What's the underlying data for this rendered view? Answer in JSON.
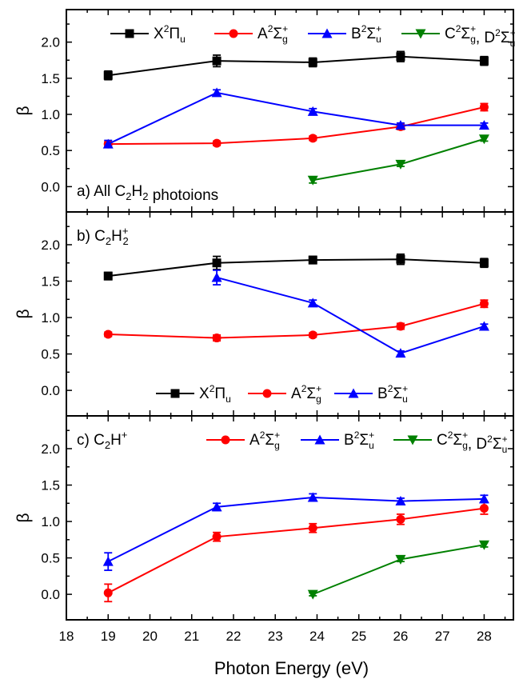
{
  "chart_data": [
    {
      "type": "line",
      "panel_label": {
        "prefix": "a) All C",
        "sub1": "2",
        "mid": "H",
        "sub2": "2",
        "suffix": " photoions"
      },
      "ylabel": "β",
      "ylim": [
        -0.35,
        2.45
      ],
      "yticks": [
        "0.0",
        "0.5",
        "1.0",
        "1.5",
        "2.0"
      ],
      "legend_position": "top",
      "series": [
        {
          "key": "X",
          "color": "#000000",
          "marker": "square",
          "x": [
            19,
            21.6,
            23.9,
            26,
            28
          ],
          "y": [
            1.54,
            1.74,
            1.72,
            1.8,
            1.74
          ],
          "err": [
            0.06,
            0.08,
            0.06,
            0.07,
            0.06
          ]
        },
        {
          "key": "A",
          "color": "#ff0000",
          "marker": "circle",
          "x": [
            19,
            21.6,
            23.9,
            26,
            28
          ],
          "y": [
            0.59,
            0.6,
            0.67,
            0.83,
            1.1
          ],
          "err": [
            0.03,
            0.03,
            0.03,
            0.04,
            0.05
          ]
        },
        {
          "key": "B",
          "color": "#0000ff",
          "marker": "triangle-up",
          "x": [
            19,
            21.6,
            23.9,
            26,
            28
          ],
          "y": [
            0.59,
            1.3,
            1.04,
            0.85,
            0.85
          ],
          "err": [
            0.05,
            0.04,
            0.04,
            0.03,
            0.03
          ]
        },
        {
          "key": "CD",
          "color": "#008000",
          "marker": "triangle-down",
          "x": [
            23.9,
            26,
            28
          ],
          "y": [
            0.09,
            0.31,
            0.66
          ],
          "err": [
            0.04,
            0.03,
            0.03
          ]
        }
      ]
    },
    {
      "type": "line",
      "panel_label": {
        "prefix": "b) C",
        "sub1": "2",
        "mid": "H",
        "sub2": "2",
        "sup": "+"
      },
      "ylabel": "β",
      "ylim": [
        -0.35,
        2.45
      ],
      "yticks": [
        "0.0",
        "0.5",
        "1.0",
        "1.5",
        "2.0"
      ],
      "legend_position": "bottom",
      "series": [
        {
          "key": "X",
          "color": "#000000",
          "marker": "square",
          "x": [
            19,
            21.6,
            23.9,
            26,
            28
          ],
          "y": [
            1.57,
            1.75,
            1.79,
            1.8,
            1.75
          ],
          "err": [
            0.05,
            0.09,
            0.05,
            0.07,
            0.06
          ]
        },
        {
          "key": "A",
          "color": "#ff0000",
          "marker": "circle",
          "x": [
            19,
            21.6,
            23.9,
            26,
            28
          ],
          "y": [
            0.77,
            0.72,
            0.76,
            0.88,
            1.19
          ],
          "err": [
            0.03,
            0.04,
            0.03,
            0.04,
            0.05
          ]
        },
        {
          "key": "B",
          "color": "#0000ff",
          "marker": "triangle-up",
          "x": [
            21.6,
            23.9,
            26,
            28
          ],
          "y": [
            1.55,
            1.2,
            0.51,
            0.88
          ],
          "err": [
            0.1,
            0.04,
            0.03,
            0.03
          ]
        }
      ]
    },
    {
      "type": "line",
      "panel_label": {
        "prefix": "c) C",
        "sub1": "2",
        "mid": "H",
        "sup": "+"
      },
      "ylabel": "β",
      "ylim": [
        -0.35,
        2.45
      ],
      "yticks": [
        "0.0",
        "0.5",
        "1.0",
        "1.5",
        "2.0"
      ],
      "legend_position": "top",
      "series": [
        {
          "key": "A",
          "color": "#ff0000",
          "marker": "circle",
          "x": [
            19,
            21.6,
            23.9,
            26,
            28
          ],
          "y": [
            0.02,
            0.79,
            0.91,
            1.03,
            1.18
          ],
          "err": [
            0.12,
            0.06,
            0.06,
            0.07,
            0.08
          ]
        },
        {
          "key": "B",
          "color": "#0000ff",
          "marker": "triangle-up",
          "x": [
            19,
            21.6,
            23.9,
            26,
            28
          ],
          "y": [
            0.45,
            1.2,
            1.33,
            1.28,
            1.31
          ],
          "err": [
            0.12,
            0.05,
            0.05,
            0.04,
            0.05
          ]
        },
        {
          "key": "CD",
          "color": "#008000",
          "marker": "triangle-down",
          "x": [
            23.9,
            26,
            28
          ],
          "y": [
            0.0,
            0.48,
            0.68
          ],
          "err": [
            0.02,
            0.03,
            0.03
          ]
        }
      ]
    }
  ],
  "legend_labels": {
    "X": {
      "letter": "X",
      "sup": "2",
      "sym": "Π",
      "sub": "u"
    },
    "A": {
      "letter": "A",
      "sup": "2",
      "sym": "Σ",
      "sup2": "+",
      "sub": "g"
    },
    "B": {
      "letter": "B",
      "sup": "2",
      "sym": "Σ",
      "sup2": "+",
      "sub": "u"
    },
    "CD": {
      "letter": "C",
      "sup": "2",
      "sym": "Σ",
      "sup2": "+",
      "sub": "g",
      "extra": ", D",
      "esup": "2",
      "esym": "Σ",
      "esup2": "+",
      "esub": "u"
    }
  },
  "x_axis": {
    "label": "Photon Energy (eV)",
    "xlim": [
      18,
      28.7
    ],
    "ticks": [
      "18",
      "19",
      "20",
      "21",
      "22",
      "23",
      "24",
      "25",
      "26",
      "27",
      "28"
    ]
  }
}
